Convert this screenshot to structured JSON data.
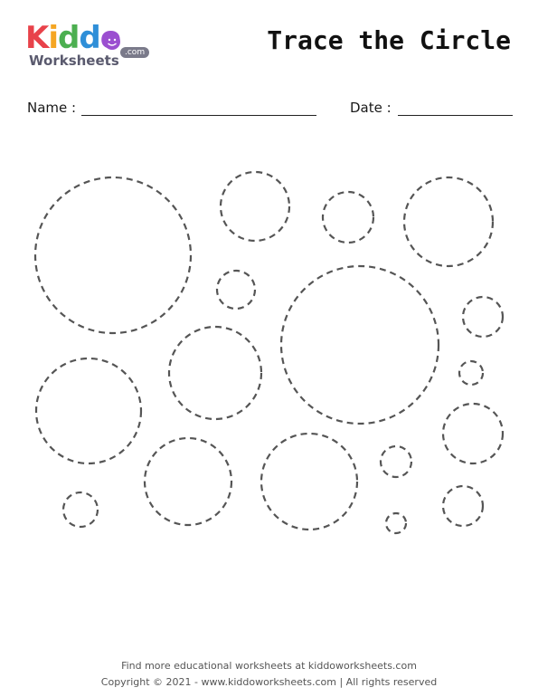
{
  "logo": {
    "letters": [
      {
        "char": "K",
        "color": "#e8424a"
      },
      {
        "char": "i",
        "color": "#f5a623"
      },
      {
        "char": "d",
        "color": "#4caf50"
      },
      {
        "char": "d",
        "color": "#2f8fd8"
      },
      {
        "char": "o",
        "color": "#9b4fd0"
      }
    ],
    "subtitle": "Worksheets",
    "domain_badge": ".com"
  },
  "title": "Trace the Circle",
  "fields": {
    "name_label": "Name :",
    "date_label": "Date :"
  },
  "worksheet": {
    "circle_count": 18,
    "stroke_color": "#555555",
    "style": "dashed"
  },
  "footer": {
    "line1": "Find more educational worksheets at kiddoworksheets.com",
    "line2": "Copyright © 2021 - www.kiddoworksheets.com  |  All rights reserved"
  }
}
